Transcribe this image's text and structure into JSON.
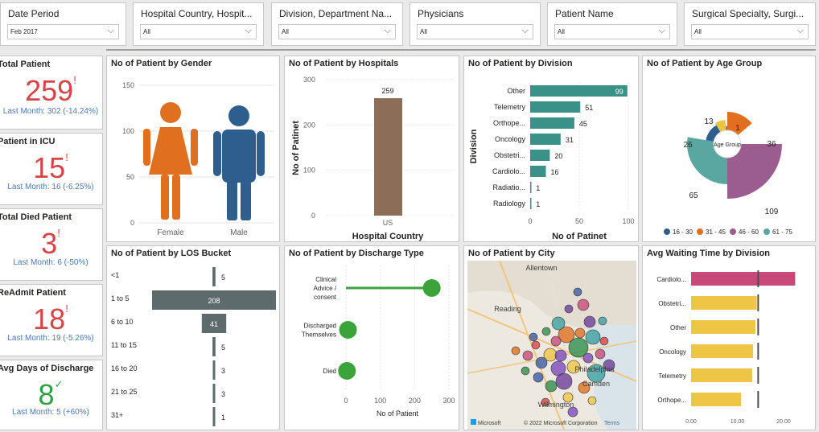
{
  "slicers": [
    {
      "title": "Date Period",
      "value": "Feb 2017"
    },
    {
      "title": "Hospital Country, Hospit...",
      "value": "All"
    },
    {
      "title": "Division, Department Na...",
      "value": "All"
    },
    {
      "title": "Physicians",
      "value": "All"
    },
    {
      "title": "Patient Name",
      "value": "All"
    },
    {
      "title": "Surgical Specialty, Surgi...",
      "value": "All"
    }
  ],
  "kpis": [
    {
      "title": "Total Patient",
      "value": "259",
      "mark": "!",
      "sub": "Last Month: 302 (-14.24%)",
      "color": "#d64545"
    },
    {
      "title": "Patient in ICU",
      "value": "15",
      "mark": "!",
      "sub": "Last Month: 16 (-6.25%)",
      "color": "#d64545"
    },
    {
      "title": "Total Died Patient",
      "value": "3",
      "mark": "!",
      "sub": "Last Month: 6 (-50%)",
      "color": "#d64545"
    },
    {
      "title": "ReAdmit Patient",
      "value": "18",
      "mark": "!",
      "sub": "Last Month: 19 (-5.26%)",
      "color": "#d64545"
    },
    {
      "title": "Avg Days of Discharge",
      "value": "8",
      "mark": "✓",
      "sub": "Last Month: 5 (+60%)",
      "color": "#2ea043"
    }
  ],
  "panels": {
    "gender": "No of Patient by Gender",
    "hospitals": "No of Patient by Hospitals",
    "division": "No of Patient by Division",
    "age": "No of Patient by Age Group",
    "los": "No of Patient by LOS Bucket",
    "discharge": "No of Patient by Discharge Type",
    "city": "No of Patient by City",
    "waiting": "Avg Waiting Time by Division"
  },
  "map": {
    "labels": [
      "Allentown",
      "Reading",
      "Philadelphia",
      "Camden",
      "Wilmington"
    ],
    "attribution": "© 2022 Microsoft Corporation",
    "terms": "Terms",
    "brand": "Microsoft"
  },
  "chart_data": [
    {
      "id": "gender",
      "type": "bar",
      "categories": [
        "Female",
        "Male"
      ],
      "ylim": [
        0,
        150
      ],
      "yticks": [
        0,
        50,
        100,
        150
      ],
      "colors": [
        "#e07020",
        "#2d5e8e"
      ]
    },
    {
      "id": "hospitals",
      "type": "bar",
      "categories": [
        "US"
      ],
      "values": [
        259
      ],
      "xlabel": "Hospital Country",
      "ylabel": "No of Patinet",
      "ylim": [
        0,
        300
      ],
      "yticks": [
        0,
        100,
        200,
        300
      ],
      "color": "#8c6d58"
    },
    {
      "id": "division",
      "type": "bar",
      "orientation": "horizontal",
      "categories": [
        "Other",
        "Telemetry",
        "Orthope...",
        "Oncology",
        "Obstetri...",
        "Cardiolo...",
        "Radiatio...",
        "Radiology"
      ],
      "values": [
        99,
        51,
        45,
        31,
        20,
        16,
        1,
        1
      ],
      "xlabel": "No of Patinet",
      "ylabel": "Division",
      "xlim": [
        0,
        100
      ],
      "xticks": [
        0,
        50,
        100
      ],
      "color": "#3a9188"
    },
    {
      "id": "age",
      "type": "pie",
      "center_label": "Age Group",
      "categories": [
        "16 - 30",
        "31 - 45",
        "46 - 60",
        "61 - 75"
      ],
      "values": [
        13,
        36,
        109,
        65
      ],
      "extra": [
        {
          "label": "26"
        },
        {
          "label": "1"
        }
      ],
      "colors": [
        "#2d5e8e",
        "#e07020",
        "#9b5c8f",
        "#5aa6a0"
      ],
      "small_colors": [
        "#e8c53a",
        "#7a5cab"
      ]
    },
    {
      "id": "los",
      "type": "bar",
      "orientation": "horizontal",
      "categories": [
        "<1",
        "1 to 5",
        "6 to 10",
        "11 to 15",
        "16 to 20",
        "21 to 25",
        "31+"
      ],
      "values": [
        5,
        208,
        41,
        5,
        3,
        3,
        1
      ],
      "color": "#5e6b6d"
    },
    {
      "id": "discharge",
      "type": "scatter",
      "categories": [
        "Clinical Advice / consent",
        "Discharged Themselves",
        "Died"
      ],
      "values": [
        250,
        6,
        3
      ],
      "xlabel": "No of Patient",
      "xlim": [
        0,
        300
      ],
      "xticks": [
        0,
        100,
        200,
        300
      ],
      "color": "#3aa33a"
    },
    {
      "id": "waiting",
      "type": "bar",
      "orientation": "horizontal",
      "categories": [
        "Cardiolo...",
        "Obstetri...",
        "Other",
        "Oncology",
        "Telemetry",
        "Orthope..."
      ],
      "values": [
        22.5,
        14.2,
        13.9,
        13.4,
        13.2,
        10.8
      ],
      "target": 14.5,
      "xlim": [
        0,
        24
      ],
      "xticks": [
        "0.00",
        "10.00",
        "20.00"
      ],
      "colors": [
        "#c8487a",
        "#efc545",
        "#efc545",
        "#efc545",
        "#efc545",
        "#efc545"
      ]
    }
  ]
}
